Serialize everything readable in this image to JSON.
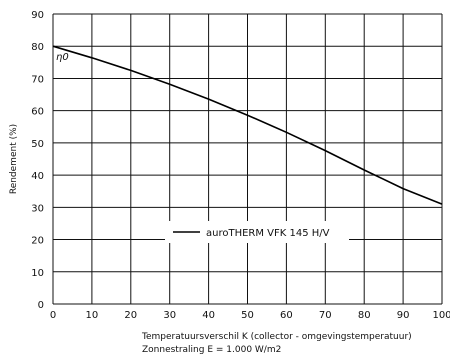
{
  "chart_data": {
    "type": "line",
    "xlabel": "Temperatuursverschil K (collector - omgevingstemperatuur)",
    "xlabel_line2": "Zonnestraling E = 1.000 W/m2",
    "ylabel": "Rendement (%)",
    "xlim": [
      0,
      100
    ],
    "ylim": [
      0,
      90
    ],
    "xticks": [
      0,
      10,
      20,
      30,
      40,
      50,
      60,
      70,
      80,
      90,
      100
    ],
    "yticks": [
      0,
      10,
      20,
      30,
      40,
      50,
      60,
      70,
      80,
      90
    ],
    "grid": true,
    "legend_placement": "center",
    "annotation": "η0",
    "series": [
      {
        "name": "auroTHERM VFK 145 H/V",
        "color": "#000000",
        "x": [
          0,
          10,
          20,
          30,
          40,
          50,
          60,
          70,
          80,
          90,
          100
        ],
        "y": [
          80,
          76.4,
          72.5,
          68.2,
          63.6,
          58.6,
          53.3,
          47.6,
          41.6,
          35.8,
          31
        ]
      }
    ]
  }
}
